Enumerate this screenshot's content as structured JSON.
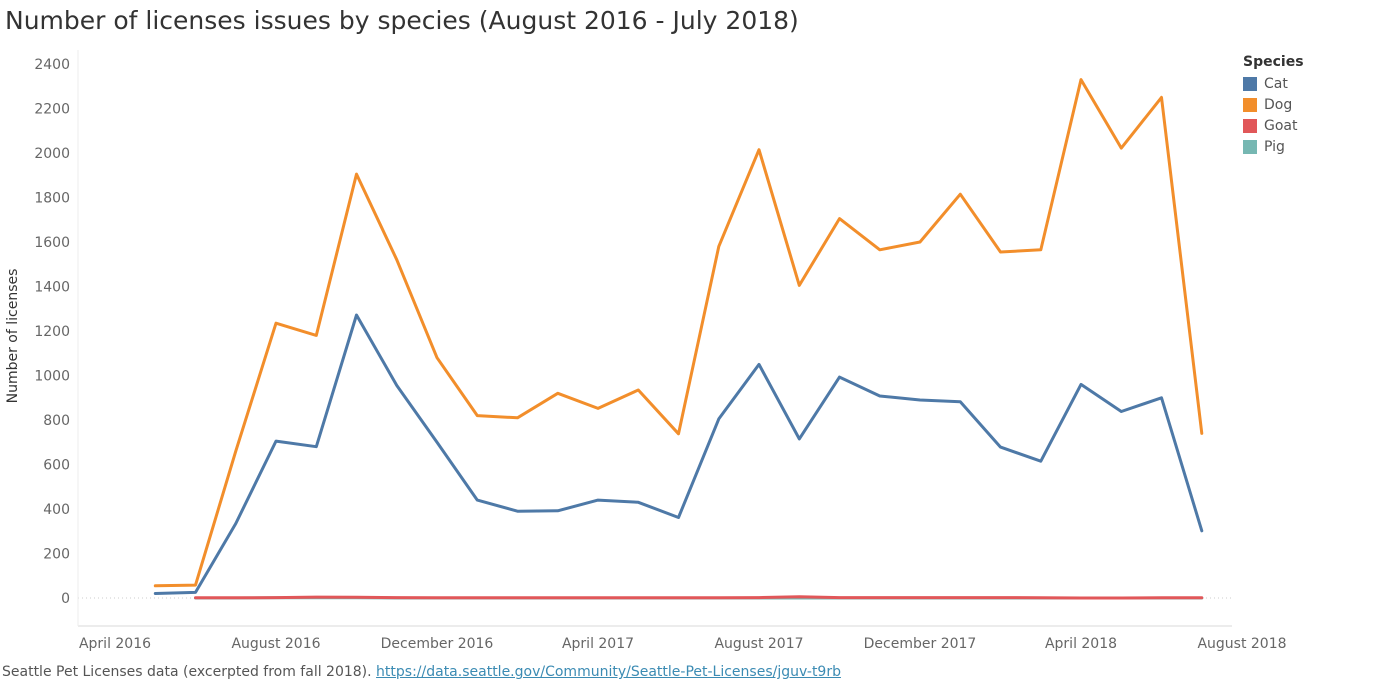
{
  "title": "Number of licenses issues by species (August 2016 - July 2018)",
  "footer": {
    "text": "Seattle Pet Licenses data  (excerpted from fall 2018).",
    "link": "https://data.seattle.gov/Community/Seattle-Pet-Licenses/jguv-t9rb"
  },
  "legend": {
    "title": "Species",
    "items": [
      {
        "label": "Cat",
        "color": "#4e79a7"
      },
      {
        "label": "Dog",
        "color": "#f28e2b"
      },
      {
        "label": "Goat",
        "color": "#e15759"
      },
      {
        "label": "Pig",
        "color": "#76b7b2"
      }
    ]
  },
  "chart_data": {
    "type": "line",
    "title": "Number of licenses issues by species (August 2016 - July 2018)",
    "xlabel": "",
    "ylabel": "Number of licenses",
    "ylim": [
      -130,
      2480
    ],
    "yticks": [
      0,
      200,
      400,
      600,
      800,
      1000,
      1200,
      1400,
      1600,
      1800,
      2000,
      2200,
      2400
    ],
    "xticks": [
      "April 2016",
      "August 2016",
      "December 2016",
      "April 2017",
      "August 2017",
      "December 2017",
      "April 2018",
      "August 2018"
    ],
    "x": [
      "2016-05",
      "2016-06",
      "2016-07",
      "2016-08",
      "2016-09",
      "2016-10",
      "2016-11",
      "2016-12",
      "2017-01",
      "2017-02",
      "2017-03",
      "2017-04",
      "2017-05",
      "2017-06",
      "2017-07",
      "2017-08",
      "2017-09",
      "2017-10",
      "2017-11",
      "2017-12",
      "2018-01",
      "2018-02",
      "2018-03",
      "2018-04",
      "2018-05",
      "2018-06",
      "2018-07"
    ],
    "series": [
      {
        "name": "Dog",
        "color": "#f28e2b",
        "values": [
          55,
          58,
          660,
          1235,
          1180,
          1905,
          1520,
          1080,
          820,
          810,
          920,
          852,
          935,
          738,
          1580,
          2015,
          1405,
          1705,
          1565,
          1600,
          1815,
          1555,
          1565,
          2330,
          2022,
          2250,
          740
        ]
      },
      {
        "name": "Cat",
        "color": "#4e79a7",
        "values": [
          20,
          25,
          335,
          705,
          680,
          1272,
          955,
          700,
          440,
          390,
          392,
          440,
          430,
          362,
          805,
          1050,
          715,
          993,
          908,
          890,
          882,
          678,
          615,
          960,
          838,
          900,
          302
        ]
      },
      {
        "name": "Pig",
        "color": "#76b7b2",
        "values": [
          null,
          0,
          0,
          1,
          1,
          1,
          0,
          0,
          0,
          0,
          0,
          0,
          0,
          0,
          0,
          0,
          0,
          0,
          0,
          0,
          0,
          0,
          0,
          0,
          0,
          0,
          0
        ]
      },
      {
        "name": "Goat",
        "color": "#e15759",
        "values": [
          null,
          1,
          1,
          2,
          4,
          3,
          2,
          1,
          1,
          1,
          1,
          1,
          1,
          1,
          1,
          2,
          6,
          2,
          2,
          2,
          2,
          2,
          1,
          0,
          0,
          1,
          1
        ]
      }
    ]
  }
}
